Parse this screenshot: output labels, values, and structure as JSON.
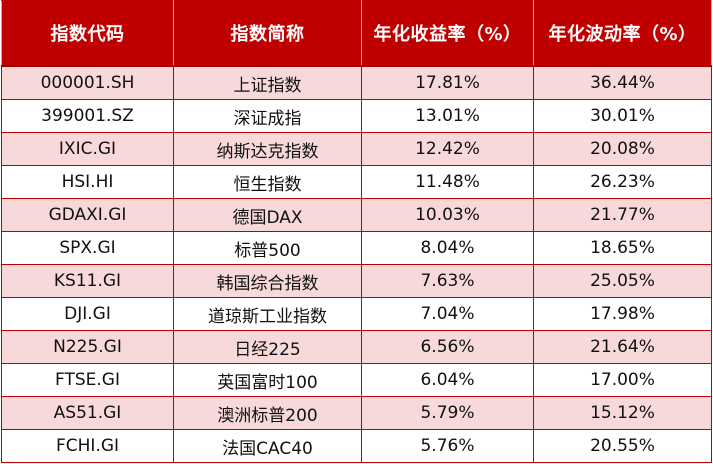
{
  "table": {
    "headers": [
      "指数代码",
      "指数简称",
      "年化收益率（%）",
      "年化波动率（%）"
    ],
    "rows": [
      [
        "000001.SH",
        "上证指数",
        "17.81%",
        "36.44%"
      ],
      [
        "399001.SZ",
        "深证成指",
        "13.01%",
        "30.01%"
      ],
      [
        "IXIC.GI",
        "纳斯达克指数",
        "12.42%",
        "20.08%"
      ],
      [
        "HSI.HI",
        "恒生指数",
        "11.48%",
        "26.23%"
      ],
      [
        "GDAXI.GI",
        "德国DAX",
        "10.03%",
        "21.77%"
      ],
      [
        "SPX.GI",
        "标普500",
        "8.04%",
        "18.65%"
      ],
      [
        "KS11.GI",
        "韩国综合指数",
        "7.63%",
        "25.05%"
      ],
      [
        "DJI.GI",
        "道琼斯工业指数",
        "7.04%",
        "17.98%"
      ],
      [
        "N225.GI",
        "日经225",
        "6.56%",
        "21.64%"
      ],
      [
        "FTSE.GI",
        "英国富时100",
        "6.04%",
        "17.00%"
      ],
      [
        "AS51.GI",
        "澳洲标普200",
        "5.79%",
        "15.12%"
      ],
      [
        "FCHI.GI",
        "法国CAC40",
        "5.76%",
        "20.55%"
      ]
    ]
  },
  "colors": {
    "header_bg": "#c00000",
    "stripe_bg": "#f7d9d9",
    "border": "#c00000"
  }
}
